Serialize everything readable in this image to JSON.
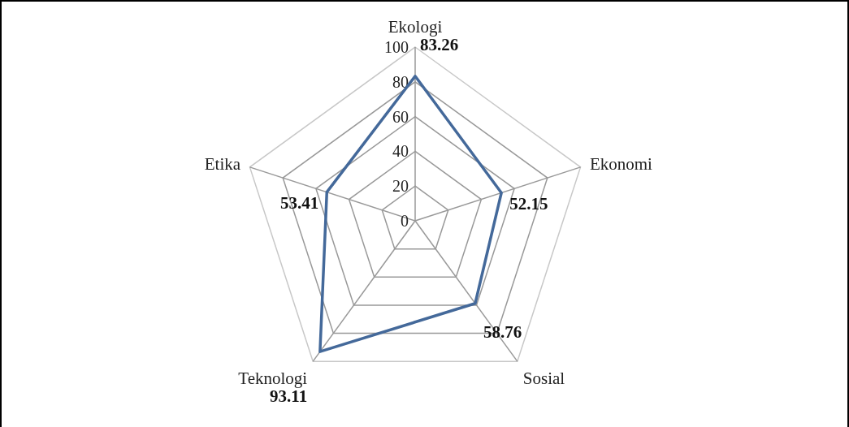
{
  "chart_data": {
    "type": "radar",
    "categories": [
      "Ekologi",
      "Ekonomi",
      "Sosial",
      "Teknologi",
      "Etika"
    ],
    "series": [
      {
        "color": "#44699a",
        "values": [
          83.26,
          52.15,
          58.76,
          93.11,
          53.41
        ]
      }
    ],
    "ylim": [
      0,
      100
    ],
    "yticks": [
      0,
      20,
      40,
      60,
      80,
      100
    ],
    "grid": true,
    "data_labels": true
  }
}
